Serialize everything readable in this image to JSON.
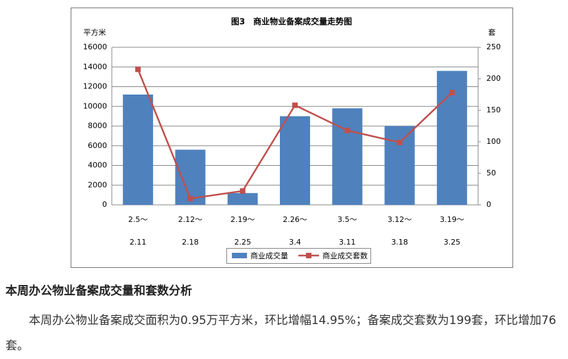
{
  "chart_data": {
    "type": "bar",
    "title": "图3　商业物业备案成交量走势图",
    "y_label": "平方米",
    "y2_label": "套",
    "categories": [
      [
        "2.5～",
        "2.11"
      ],
      [
        "2.12～",
        "2.18"
      ],
      [
        "2.19～",
        "2.25"
      ],
      [
        "2.26～",
        "3.4"
      ],
      [
        "3.5～",
        "3.11"
      ],
      [
        "3.12～",
        "3.18"
      ],
      [
        "3.19～",
        "3.25"
      ]
    ],
    "series": [
      {
        "name": "商业成交量",
        "type": "bar",
        "color": "#4f81bd",
        "values": [
          11200,
          5600,
          1200,
          9000,
          9800,
          8000,
          13600
        ]
      },
      {
        "name": "商业成交套数",
        "type": "line",
        "color": "#c0504d",
        "axis": "y2",
        "values": [
          215,
          10,
          22,
          158,
          118,
          99,
          178
        ]
      }
    ],
    "ylim": [
      0,
      16000
    ],
    "yticks": [
      0,
      2000,
      4000,
      6000,
      8000,
      10000,
      12000,
      14000,
      16000
    ],
    "y2lim": [
      0,
      250
    ],
    "y2ticks": [
      0,
      50,
      100,
      150,
      200,
      250
    ],
    "grid": true,
    "legend": "bottom"
  },
  "heading": "本周办公物业备案成交量和套数分析",
  "paragraph": "本周办公物业备案成交面积为0.95万平方米，环比增幅14.95%；备案成交套数为199套，环比增加76套。"
}
